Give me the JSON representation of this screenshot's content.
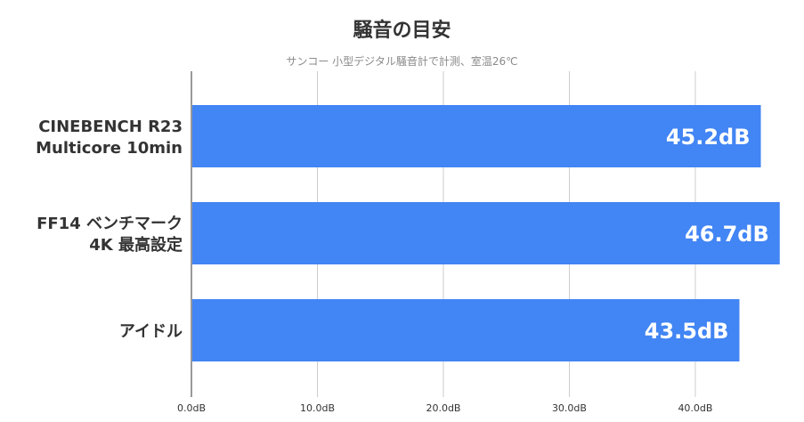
{
  "chart_data": {
    "type": "bar",
    "orientation": "horizontal",
    "title": "騒音の目安",
    "subtitle": "サンコー 小型デジタル騒音計で計測、室温26℃",
    "categories": [
      [
        "CINEBENCH R23",
        "Multicore 10min"
      ],
      [
        "FF14 ベンチマーク",
        "4K 最高設定"
      ],
      [
        "アイドル"
      ]
    ],
    "values": [
      45.2,
      46.7,
      43.5
    ],
    "data_labels": [
      "45.2dB",
      "46.7dB",
      "43.5dB"
    ],
    "x_ticks": [
      0,
      10,
      20,
      30,
      40
    ],
    "x_tick_labels": [
      "0.0dB",
      "10.0dB",
      "20.0dB",
      "30.0dB",
      "40.0dB"
    ],
    "xlim": [
      0,
      47
    ],
    "grid": true,
    "legend": "none",
    "bar_color": "#4285f4",
    "grid_color": "#cccccc",
    "axis_color": "#333333"
  }
}
